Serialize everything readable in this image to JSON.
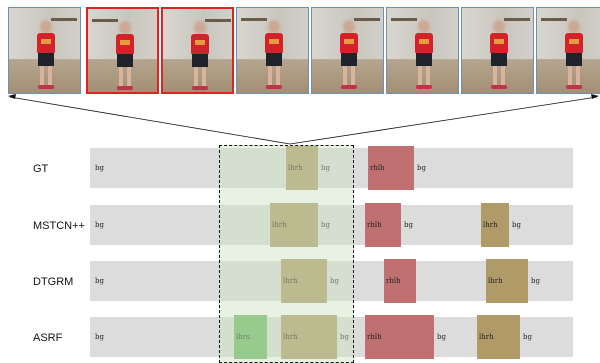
{
  "frames": [
    {
      "highlight": false
    },
    {
      "highlight": true
    },
    {
      "highlight": true
    },
    {
      "highlight": false
    },
    {
      "highlight": false
    },
    {
      "highlight": false
    },
    {
      "highlight": false
    },
    {
      "highlight": false
    }
  ],
  "colors": {
    "background_bar": "#dcdcdc",
    "lhrh": "#b09a68",
    "rhlh": "#c07070",
    "lhrs": "#6cb865",
    "highlight_frame": "#e02222",
    "window_fill": "#cde2be"
  },
  "rows": [
    {
      "label": "GT",
      "background_label": "bg",
      "segments": [
        {
          "label": "lhrh",
          "class": "lhrh",
          "after": "bg"
        },
        {
          "label": "rhlh",
          "class": "rhlh",
          "after": "bg"
        }
      ]
    },
    {
      "label": "MSTCN++",
      "background_label": "bg",
      "segments": [
        {
          "label": "lhrh",
          "class": "lhrh",
          "after": "bg"
        },
        {
          "label": "rhlh",
          "class": "rhlh",
          "after": "bg"
        },
        {
          "label": "lhrh",
          "class": "lhrh",
          "after": "bg"
        }
      ]
    },
    {
      "label": "DTGRM",
      "background_label": "bg",
      "segments": [
        {
          "label": "lhrh",
          "class": "lhrh",
          "after": "bg"
        },
        {
          "label": "rhlh",
          "class": "rhlh",
          "after": ""
        },
        {
          "label": "lhrh",
          "class": "lhrh",
          "after": "bg"
        }
      ]
    },
    {
      "label": "ASRF",
      "background_label": "bg",
      "segments": [
        {
          "label": "lhrs",
          "class": "lhrs",
          "after": ""
        },
        {
          "label": "lhrh",
          "class": "lhrh",
          "after": "bg"
        },
        {
          "label": "rhlh",
          "class": "rhlh",
          "after": "bg"
        },
        {
          "label": "lhrh",
          "class": "lhrh",
          "after": "bg"
        }
      ]
    }
  ]
}
